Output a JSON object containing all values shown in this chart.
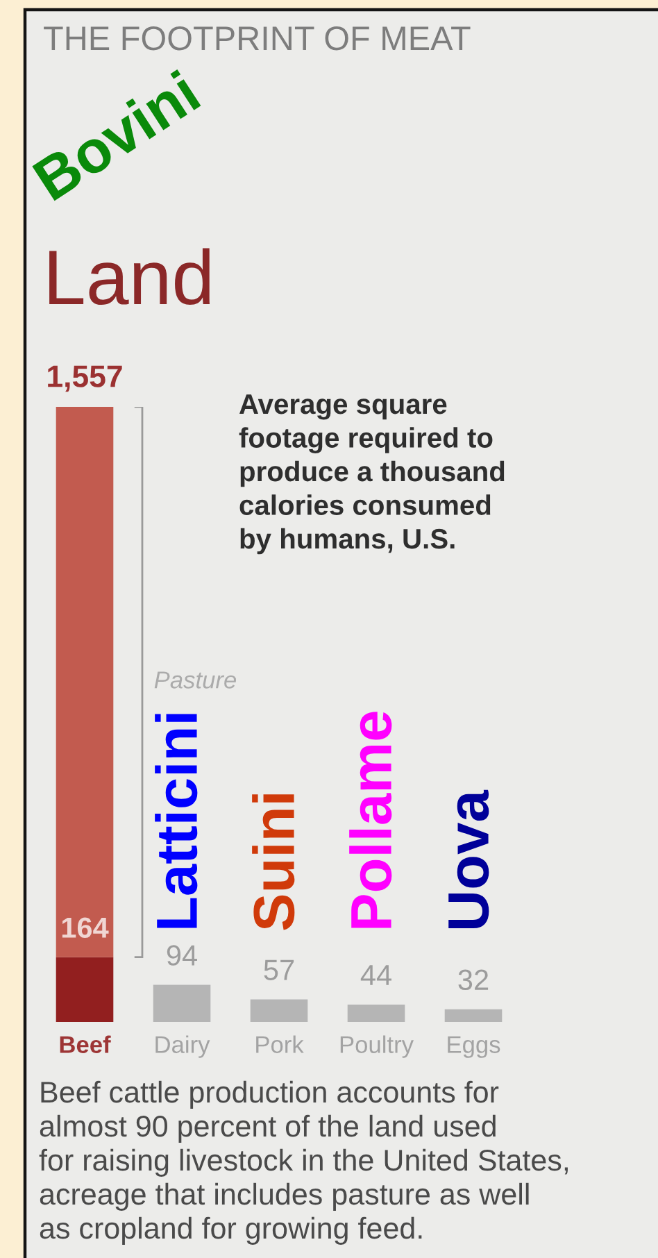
{
  "chart_data": {
    "type": "bar",
    "title": "Land",
    "subtitle": "Average square\nfootage required to\nproduce a thousand\ncalories consumed\nby humans, U.S.",
    "categories": [
      "Beef",
      "Dairy",
      "Pork",
      "Poultry",
      "Eggs"
    ],
    "stacked": true,
    "series": [
      {
        "colors": [
          "#921f1f",
          "#b5b5b5",
          "#b5b5b5",
          "#b5b5b5",
          "#b5b5b5"
        ],
        "values": [
          164,
          94,
          57,
          44,
          32
        ],
        "value_labels": [
          "164",
          "94",
          "57",
          "44",
          "32"
        ]
      },
      {
        "name": "Pasture",
        "color": "#c25b4f",
        "values": [
          1393,
          null,
          null,
          null,
          null
        ]
      }
    ],
    "totals": [
      "1,557",
      null,
      null,
      null,
      null
    ],
    "annotations": [
      "THE FOOTPRINT OF MEAT",
      "Bovini",
      "Latticini",
      "Suini",
      "Pollame",
      "Uova",
      "Beef cattle production accounts for\nalmost 90 percent of the land used\nfor raising livestock in the United States,\nacreage that includes pasture as well\nas cropland for growing feed."
    ]
  }
}
